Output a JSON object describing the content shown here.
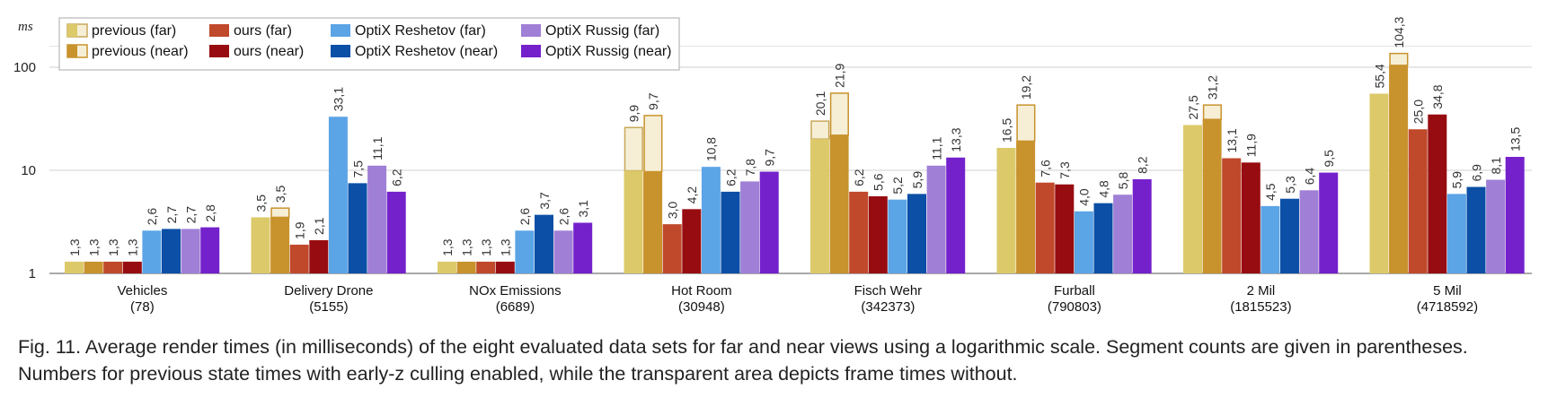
{
  "chart_data": {
    "type": "bar",
    "scale": "log",
    "ylabel": "ms",
    "yticks": [
      1,
      10,
      100
    ],
    "ylim": [
      1,
      160
    ],
    "grid": true,
    "legend_placement": "top-left",
    "categories": [
      {
        "name": "Vehicles",
        "count": "(78)"
      },
      {
        "name": "Delivery Drone",
        "count": "(5155)"
      },
      {
        "name": "NOx  Emissions",
        "count": "(6689)"
      },
      {
        "name": "Hot Room",
        "count": "(30948)"
      },
      {
        "name": "Fisch Wehr",
        "count": "(342373)"
      },
      {
        "name": "Furball",
        "count": "(790803)"
      },
      {
        "name": "2 Mil",
        "count": "(1815523)"
      },
      {
        "name": "5 Mil",
        "count": "(4718592)"
      }
    ],
    "series": [
      {
        "name": "previous (far)",
        "color": "#dcc96a",
        "outline": "#c8a85a",
        "values": [
          1.3,
          3.5,
          1.3,
          9.9,
          20.1,
          16.5,
          27.5,
          55.4
        ],
        "nocull": [
          1.3,
          3.5,
          1.3,
          26,
          30,
          16.5,
          27.5,
          55.4
        ],
        "labels": [
          "1,3",
          "3,5",
          "1,3",
          "9,9",
          "20,1",
          "16,5",
          "27,5",
          "55,4"
        ]
      },
      {
        "name": "previous (near)",
        "color": "#c8922c",
        "outline": "#c8922c",
        "values": [
          1.3,
          3.5,
          1.3,
          9.7,
          21.9,
          19.2,
          31.2,
          104.3
        ],
        "nocull": [
          1.3,
          4.3,
          1.3,
          34,
          56,
          43,
          43,
          136
        ],
        "labels": [
          "1,3",
          "3,5",
          "1,3",
          "9,7",
          "21,9",
          "19,2",
          "31,2",
          "104,3"
        ]
      },
      {
        "name": "ours (far)",
        "color": "#c0492b",
        "values": [
          1.3,
          1.9,
          1.3,
          3.0,
          6.2,
          7.6,
          13.1,
          25.0
        ],
        "labels": [
          "1,3",
          "1,9",
          "1,3",
          "3,0",
          "6,2",
          "7,6",
          "13,1",
          "25,0"
        ]
      },
      {
        "name": "ours (near)",
        "color": "#970c10",
        "values": [
          1.3,
          2.1,
          1.3,
          4.2,
          5.6,
          7.3,
          11.9,
          34.8
        ],
        "labels": [
          "1,3",
          "2,1",
          "1,3",
          "4,2",
          "5,6",
          "7,3",
          "11,9",
          "34,8"
        ]
      },
      {
        "name": "OptiX Reshetov (far)",
        "color": "#5ba4e6",
        "values": [
          2.6,
          33.1,
          2.6,
          10.8,
          5.2,
          4.0,
          4.5,
          5.9
        ],
        "labels": [
          "2,6",
          "33,1",
          "2,6",
          "10,8",
          "5,2",
          "4,0",
          "4,5",
          "5,9"
        ]
      },
      {
        "name": "OptiX Reshetov (near)",
        "color": "#0b4fa6",
        "values": [
          2.7,
          7.5,
          3.7,
          6.2,
          5.9,
          4.8,
          5.3,
          6.9
        ],
        "labels": [
          "2,7",
          "7,5",
          "3,7",
          "6,2",
          "5,9",
          "4,8",
          "5,3",
          "6,9"
        ]
      },
      {
        "name": "OptiX Russig (far)",
        "color": "#a07fd6",
        "values": [
          2.7,
          11.1,
          2.6,
          7.8,
          11.1,
          5.8,
          6.4,
          8.1
        ],
        "labels": [
          "2,7",
          "11,1",
          "2,6",
          "7,8",
          "11,1",
          "5,8",
          "6,4",
          "8,1"
        ]
      },
      {
        "name": "OptiX Russig (near)",
        "color": "#7421cc",
        "values": [
          2.8,
          6.2,
          3.1,
          9.7,
          13.3,
          8.2,
          9.5,
          13.5
        ],
        "labels": [
          "2,8",
          "6,2",
          "3,1",
          "9,7",
          "13,3",
          "8,2",
          "9,5",
          "13,5"
        ]
      }
    ]
  },
  "caption": "Fig. 11. Average render times (in milliseconds) of the eight evaluated data sets for far and near views using a logarithmic scale. Segment counts are given in parentheses. Numbers for previous state times with early-z culling enabled, while the transparent area depicts frame times without."
}
